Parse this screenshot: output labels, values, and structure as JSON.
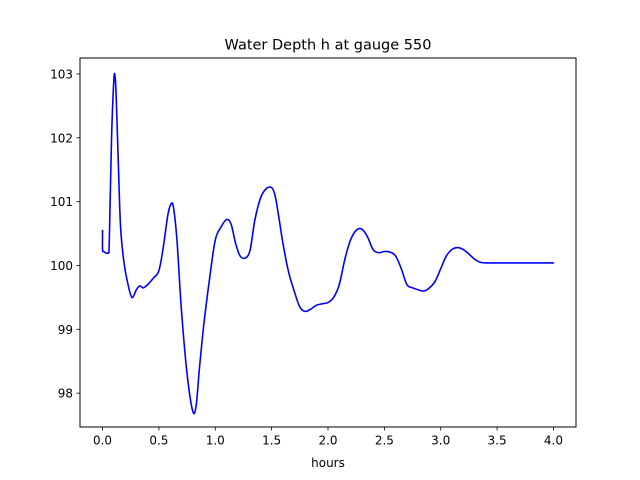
{
  "chart_data": {
    "type": "line",
    "title": "Water Depth h at gauge 550",
    "xlabel": "hours",
    "ylabel": "",
    "xlim": [
      -0.2,
      4.2
    ],
    "ylim": [
      97.47,
      103.25
    ],
    "xticks": [
      0.0,
      0.5,
      1.0,
      1.5,
      2.0,
      2.5,
      3.0,
      3.5,
      4.0
    ],
    "xtick_labels": [
      "0.0",
      "0.5",
      "1.0",
      "1.5",
      "2.0",
      "2.5",
      "3.0",
      "3.5",
      "4.0"
    ],
    "yticks": [
      98,
      99,
      100,
      101,
      102,
      103
    ],
    "ytick_labels": [
      "98",
      "99",
      "100",
      "101",
      "102",
      "103"
    ],
    "grid": false,
    "legend": "none",
    "series": [
      {
        "color": "#0000ff",
        "x": [
          0.0,
          0.0,
          0.01,
          0.05,
          0.06,
          0.08,
          0.1,
          0.11,
          0.12,
          0.14,
          0.16,
          0.19,
          0.22,
          0.26,
          0.3,
          0.33,
          0.36,
          0.4,
          0.45,
          0.5,
          0.54,
          0.58,
          0.61,
          0.63,
          0.66,
          0.7,
          0.75,
          0.8,
          0.83,
          0.86,
          0.9,
          0.95,
          1.0,
          1.05,
          1.1,
          1.14,
          1.18,
          1.22,
          1.27,
          1.31,
          1.35,
          1.4,
          1.45,
          1.5,
          1.53,
          1.56,
          1.6,
          1.65,
          1.7,
          1.75,
          1.8,
          1.85,
          1.9,
          1.95,
          2.0,
          2.05,
          2.1,
          2.15,
          2.2,
          2.25,
          2.3,
          2.35,
          2.4,
          2.45,
          2.5,
          2.55,
          2.6,
          2.65,
          2.7,
          2.75,
          2.8,
          2.85,
          2.9,
          2.95,
          3.0,
          3.05,
          3.1,
          3.15,
          3.2,
          3.25,
          3.3,
          3.35,
          3.4,
          3.45,
          3.5,
          3.55,
          3.6,
          3.65,
          3.7,
          3.75,
          3.8,
          3.85,
          3.9,
          3.95,
          4.0
        ],
        "y": [
          100.55,
          100.25,
          100.22,
          100.2,
          100.4,
          102.0,
          102.9,
          102.97,
          102.7,
          101.6,
          100.6,
          100.05,
          99.75,
          99.5,
          99.62,
          99.68,
          99.65,
          99.7,
          99.8,
          99.92,
          100.3,
          100.8,
          100.97,
          100.9,
          100.4,
          99.3,
          98.3,
          97.72,
          97.8,
          98.4,
          99.1,
          99.8,
          100.4,
          100.6,
          100.72,
          100.65,
          100.35,
          100.15,
          100.12,
          100.25,
          100.7,
          101.05,
          101.2,
          101.22,
          101.1,
          100.8,
          100.35,
          99.9,
          99.6,
          99.35,
          99.28,
          99.32,
          99.38,
          99.4,
          99.42,
          99.5,
          99.7,
          100.1,
          100.4,
          100.55,
          100.57,
          100.45,
          100.25,
          100.2,
          100.22,
          100.21,
          100.15,
          99.95,
          99.7,
          99.65,
          99.62,
          99.6,
          99.65,
          99.75,
          99.95,
          100.15,
          100.25,
          100.28,
          100.25,
          100.18,
          100.1,
          100.05,
          100.04,
          100.04,
          100.04,
          100.04,
          100.04,
          100.04,
          100.04,
          100.04,
          100.04,
          100.04,
          100.04,
          100.04,
          100.04
        ]
      }
    ]
  }
}
